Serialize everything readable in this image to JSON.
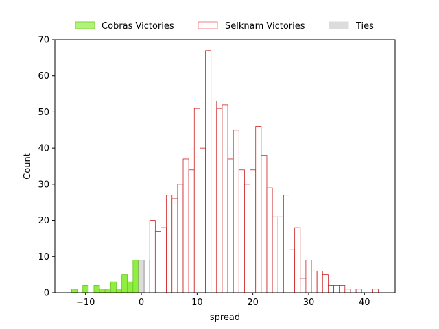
{
  "chart_data": {
    "type": "bar",
    "title": "",
    "xlabel": "spread",
    "ylabel": "Count",
    "xlim": [
      -15.5,
      45.5
    ],
    "ylim": [
      0,
      70
    ],
    "x_ticks": [
      -10,
      0,
      10,
      20,
      30,
      40
    ],
    "y_ticks": [
      0,
      10,
      20,
      30,
      40,
      50,
      60,
      70
    ],
    "x_tick_labels": [
      "−10",
      "0",
      "10",
      "20",
      "30",
      "40"
    ],
    "y_tick_labels": [
      "0",
      "10",
      "20",
      "30",
      "40",
      "50",
      "60",
      "70"
    ],
    "grid": false,
    "legend_position": "top-center",
    "bin_width": 1,
    "series": [
      {
        "name": "Cobras Victories",
        "color": "#90ee40",
        "edge": "#6bc22a",
        "legend_fill": "#b3f27a",
        "legend_edge": "#7fd13a",
        "bins": [
          {
            "x": -12,
            "count": 1
          },
          {
            "x": -10,
            "count": 2
          },
          {
            "x": -8,
            "count": 2
          },
          {
            "x": -7,
            "count": 1
          },
          {
            "x": -6,
            "count": 1
          },
          {
            "x": -5,
            "count": 3
          },
          {
            "x": -4,
            "count": 1
          },
          {
            "x": -3,
            "count": 5
          },
          {
            "x": -2,
            "count": 3
          },
          {
            "x": -1,
            "count": 9
          }
        ]
      },
      {
        "name": "Selknam Victories",
        "color": "#ffffff",
        "edge": "#cc1f1f",
        "legend_fill": "#ffffff",
        "legend_edge": "#f08080",
        "bins": [
          {
            "x": 1,
            "count": 9
          },
          {
            "x": 2,
            "count": 20
          },
          {
            "x": 3,
            "count": 17
          },
          {
            "x": 4,
            "count": 18
          },
          {
            "x": 5,
            "count": 27
          },
          {
            "x": 6,
            "count": 26
          },
          {
            "x": 7,
            "count": 30
          },
          {
            "x": 8,
            "count": 37
          },
          {
            "x": 9,
            "count": 34
          },
          {
            "x": 10,
            "count": 51
          },
          {
            "x": 11,
            "count": 40
          },
          {
            "x": 12,
            "count": 67
          },
          {
            "x": 13,
            "count": 53
          },
          {
            "x": 14,
            "count": 51
          },
          {
            "x": 15,
            "count": 52
          },
          {
            "x": 16,
            "count": 37
          },
          {
            "x": 17,
            "count": 45
          },
          {
            "x": 18,
            "count": 34
          },
          {
            "x": 19,
            "count": 30
          },
          {
            "x": 20,
            "count": 34
          },
          {
            "x": 21,
            "count": 46
          },
          {
            "x": 22,
            "count": 38
          },
          {
            "x": 23,
            "count": 29
          },
          {
            "x": 24,
            "count": 21
          },
          {
            "x": 25,
            "count": 21
          },
          {
            "x": 26,
            "count": 27
          },
          {
            "x": 27,
            "count": 12
          },
          {
            "x": 28,
            "count": 18
          },
          {
            "x": 29,
            "count": 4
          },
          {
            "x": 30,
            "count": 9
          },
          {
            "x": 31,
            "count": 6
          },
          {
            "x": 32,
            "count": 6
          },
          {
            "x": 33,
            "count": 5
          },
          {
            "x": 34,
            "count": 2
          },
          {
            "x": 35,
            "count": 2
          },
          {
            "x": 36,
            "count": 2
          },
          {
            "x": 37,
            "count": 1
          },
          {
            "x": 39,
            "count": 1
          },
          {
            "x": 42,
            "count": 1
          }
        ]
      },
      {
        "name": "Ties",
        "color": "#dcdcdc",
        "edge": "#808080",
        "legend_fill": "#dcdcdc",
        "legend_edge": "#dcdcdc",
        "bins": [
          {
            "x": 0,
            "count": 9
          }
        ]
      }
    ]
  }
}
